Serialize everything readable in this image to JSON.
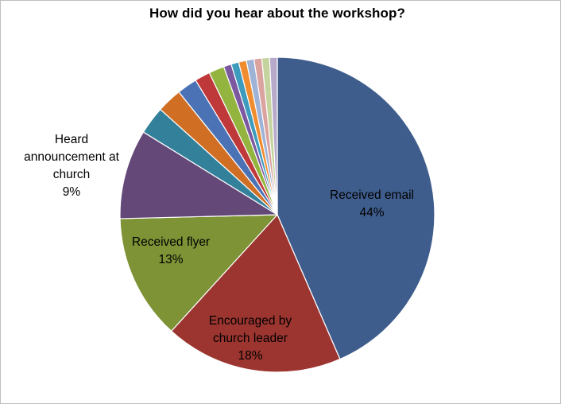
{
  "chart_data": {
    "type": "pie",
    "title": "How did you hear about the workshop?",
    "slices": [
      {
        "name": "Received email",
        "label": "Received email",
        "pct": "44%",
        "value": 44.0,
        "color": "#3f5d8c",
        "showLabel": true
      },
      {
        "name": "Encouraged by church leader",
        "label": "Encouraged by church leader",
        "pct": "18%",
        "value": 18.5,
        "color": "#9c3530",
        "showLabel": true
      },
      {
        "name": "Received flyer",
        "label": "Received flyer",
        "pct": "13%",
        "value": 13.0,
        "color": "#7d9336",
        "showLabel": true
      },
      {
        "name": "Heard announcement at church",
        "label": "Heard announcement at church",
        "pct": "9%",
        "value": 9.3,
        "color": "#644878",
        "showLabel": true
      },
      {
        "name": "",
        "label": "",
        "pct": "",
        "value": 2.9,
        "color": "#33809a",
        "showLabel": false
      },
      {
        "name": "",
        "label": "",
        "pct": "",
        "value": 2.6,
        "color": "#d06e24",
        "showLabel": false
      },
      {
        "name": "",
        "label": "",
        "pct": "",
        "value": 2.1,
        "color": "#4a72b5",
        "showLabel": false
      },
      {
        "name": "",
        "label": "",
        "pct": "",
        "value": 1.6,
        "color": "#c0393a",
        "showLabel": false
      },
      {
        "name": "",
        "label": "",
        "pct": "",
        "value": 1.6,
        "color": "#93b43f",
        "showLabel": false
      },
      {
        "name": "",
        "label": "",
        "pct": "",
        "value": 0.8,
        "color": "#7b58a0",
        "showLabel": false
      },
      {
        "name": "",
        "label": "",
        "pct": "",
        "value": 0.8,
        "color": "#3d9bbd",
        "showLabel": false
      },
      {
        "name": "",
        "label": "",
        "pct": "",
        "value": 0.8,
        "color": "#f08c2e",
        "showLabel": false
      },
      {
        "name": "",
        "label": "",
        "pct": "",
        "value": 0.8,
        "color": "#9fb3d6",
        "showLabel": false
      },
      {
        "name": "",
        "label": "",
        "pct": "",
        "value": 0.8,
        "color": "#dba3a0",
        "showLabel": false
      },
      {
        "name": "",
        "label": "",
        "pct": "",
        "value": 0.8,
        "color": "#c5d39f",
        "showLabel": false
      },
      {
        "name": "",
        "label": "",
        "pct": "",
        "value": 0.8,
        "color": "#b7a9c9",
        "showLabel": false
      }
    ],
    "legend": "none",
    "data_labels": "inside-or-outside"
  }
}
